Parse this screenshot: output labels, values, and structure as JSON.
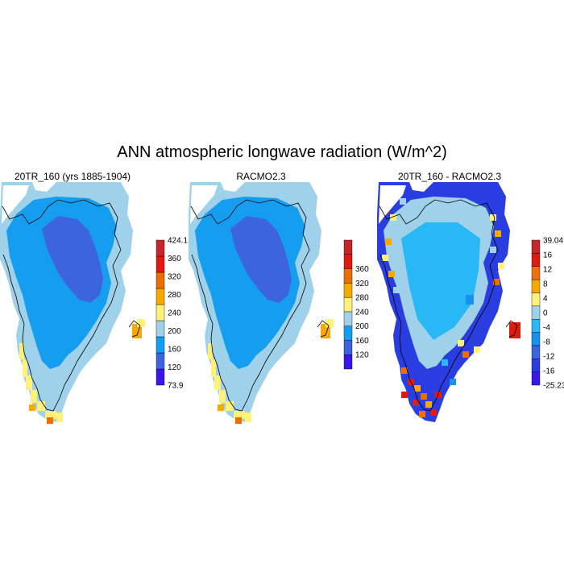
{
  "title": "ANN atmospheric longwave radiation (W/m^2)",
  "panels": [
    {
      "title": "20TR_160 (yrs 1885-1904)",
      "variant": "model",
      "colorbar": {
        "colors": [
          "#3a17e8",
          "#3c64de",
          "#159ef0",
          "#9fd1ea",
          "#fff17a",
          "#f6a900",
          "#e96f00",
          "#e01a10",
          "#c4262a"
        ],
        "labels": [
          "73.9",
          "120",
          "160",
          "200",
          "240",
          "280",
          "320",
          "360",
          "424.1"
        ],
        "label_style": "edges"
      }
    },
    {
      "title": "RACMO2.3",
      "variant": "model",
      "colorbar": {
        "colors": [
          "#3a17e8",
          "#3c64de",
          "#159ef0",
          "#9fd1ea",
          "#fff17a",
          "#f6a900",
          "#e96f00",
          "#e01a10",
          "#c4262a"
        ],
        "labels": [
          "120",
          "160",
          "200",
          "240",
          "280",
          "320",
          "360"
        ],
        "label_style": "interior"
      }
    },
    {
      "title": "20TR_160 - RACMO2.3",
      "variant": "diff",
      "colorbar": {
        "colors": [
          "#3a17e8",
          "#2a3de0",
          "#3c64de",
          "#1a90f0",
          "#27b8f5",
          "#9fd1ea",
          "#fff17a",
          "#f6a900",
          "#f06e10",
          "#e01a10",
          "#c4262a"
        ],
        "labels": [
          "-25.23",
          "-16",
          "-12",
          "-8",
          "-4",
          "0",
          "4",
          "8",
          "12",
          "16",
          "39.04"
        ],
        "label_style": "edges"
      }
    }
  ]
}
